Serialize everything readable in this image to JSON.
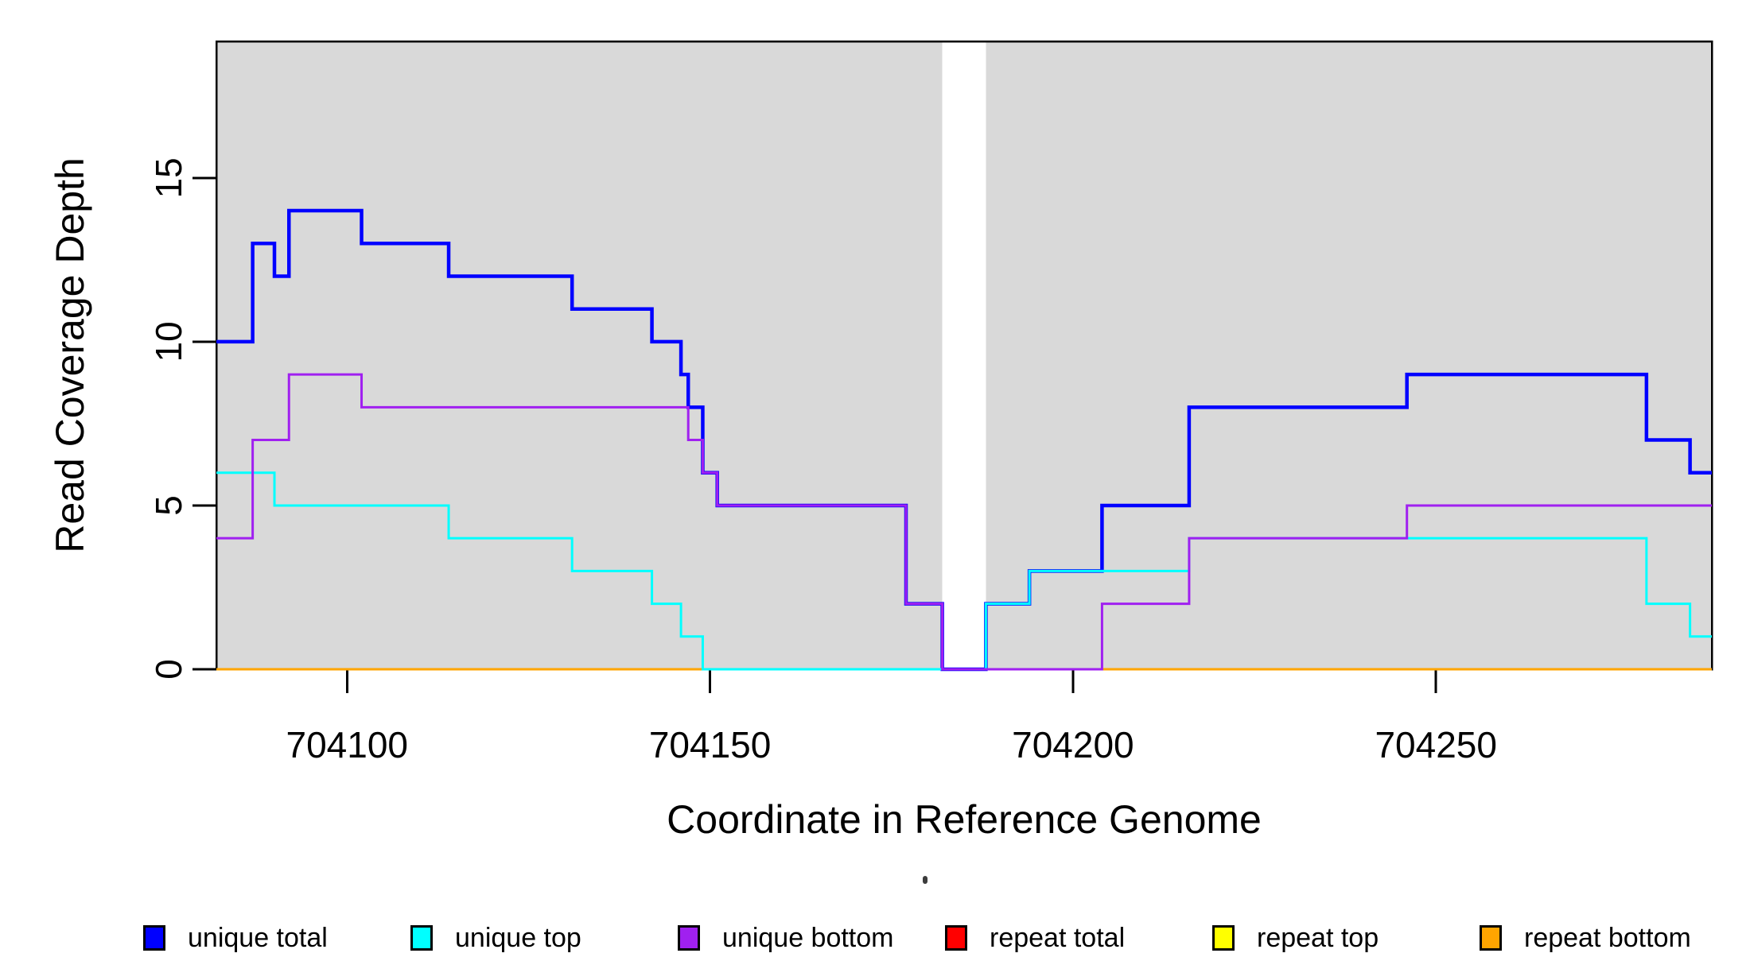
{
  "figure": {
    "y_axis_title": "Read Coverage Depth",
    "x_axis_title": "Coordinate in Reference Genome"
  },
  "chart_data": {
    "type": "line",
    "subtype": "step-post",
    "title": "",
    "xlabel": "Coordinate in Reference Genome",
    "ylabel": "Read Coverage Depth",
    "x_range": [
      704082,
      704288
    ],
    "y_range": [
      0,
      19.17
    ],
    "x_ticks": [
      704100,
      704150,
      704200,
      704250
    ],
    "y_ticks": [
      0,
      5,
      10,
      15
    ],
    "grid": "off",
    "plot_background": "#d9d9d9",
    "masked_region": {
      "x_start": 704182,
      "x_end": 704188,
      "fill": "#ffffff"
    },
    "axis_color": "#000000",
    "series": [
      {
        "name": "repeat total",
        "color": "#FF0000",
        "width": 3,
        "points": [
          [
            704082,
            0
          ],
          [
            704288,
            0
          ]
        ]
      },
      {
        "name": "repeat top",
        "color": "#FFFF00",
        "width": 3,
        "points": [
          [
            704082,
            0
          ],
          [
            704288,
            0
          ]
        ]
      },
      {
        "name": "repeat bottom",
        "color": "#FFA500",
        "width": 3,
        "points": [
          [
            704082,
            0
          ],
          [
            704288,
            0
          ]
        ]
      },
      {
        "name": "unique total",
        "color": "#0000FF",
        "width": 4.5,
        "points": [
          [
            704082,
            10
          ],
          [
            704087,
            13
          ],
          [
            704090,
            12
          ],
          [
            704092,
            14
          ],
          [
            704102,
            13
          ],
          [
            704114,
            12
          ],
          [
            704131,
            11
          ],
          [
            704142,
            10
          ],
          [
            704146,
            9
          ],
          [
            704147,
            8
          ],
          [
            704149,
            6
          ],
          [
            704151,
            5
          ],
          [
            704177,
            2
          ],
          [
            704182,
            0
          ],
          [
            704188,
            2
          ],
          [
            704194,
            3
          ],
          [
            704204,
            5
          ],
          [
            704216,
            8
          ],
          [
            704246,
            9
          ],
          [
            704279,
            7
          ],
          [
            704285,
            6
          ],
          [
            704288,
            6
          ]
        ]
      },
      {
        "name": "unique top",
        "color": "#00FFFF",
        "width": 3,
        "points": [
          [
            704082,
            6
          ],
          [
            704090,
            5
          ],
          [
            704114,
            4
          ],
          [
            704131,
            3
          ],
          [
            704142,
            2
          ],
          [
            704146,
            1
          ],
          [
            704149,
            0
          ],
          [
            704188,
            2
          ],
          [
            704194,
            3
          ],
          [
            704216,
            4
          ],
          [
            704279,
            2
          ],
          [
            704285,
            1
          ],
          [
            704288,
            1
          ]
        ]
      },
      {
        "name": "unique bottom",
        "color": "#A020F0",
        "width": 3,
        "points": [
          [
            704082,
            4
          ],
          [
            704087,
            7
          ],
          [
            704092,
            9
          ],
          [
            704102,
            8
          ],
          [
            704147,
            7
          ],
          [
            704149,
            6
          ],
          [
            704151,
            5
          ],
          [
            704177,
            2
          ],
          [
            704182,
            0
          ],
          [
            704204,
            2
          ],
          [
            704216,
            4
          ],
          [
            704246,
            5
          ],
          [
            704288,
            5
          ]
        ]
      }
    ],
    "legend": {
      "position": "bottom",
      "entries": [
        {
          "label": "unique total",
          "color": "#0000FF"
        },
        {
          "label": "unique top",
          "color": "#00FFFF"
        },
        {
          "label": "unique bottom",
          "color": "#A020F0"
        },
        {
          "label": "repeat total",
          "color": "#FF0000"
        },
        {
          "label": "repeat top",
          "color": "#FFFF00"
        },
        {
          "label": "repeat bottom",
          "color": "#FFA500"
        }
      ]
    }
  }
}
